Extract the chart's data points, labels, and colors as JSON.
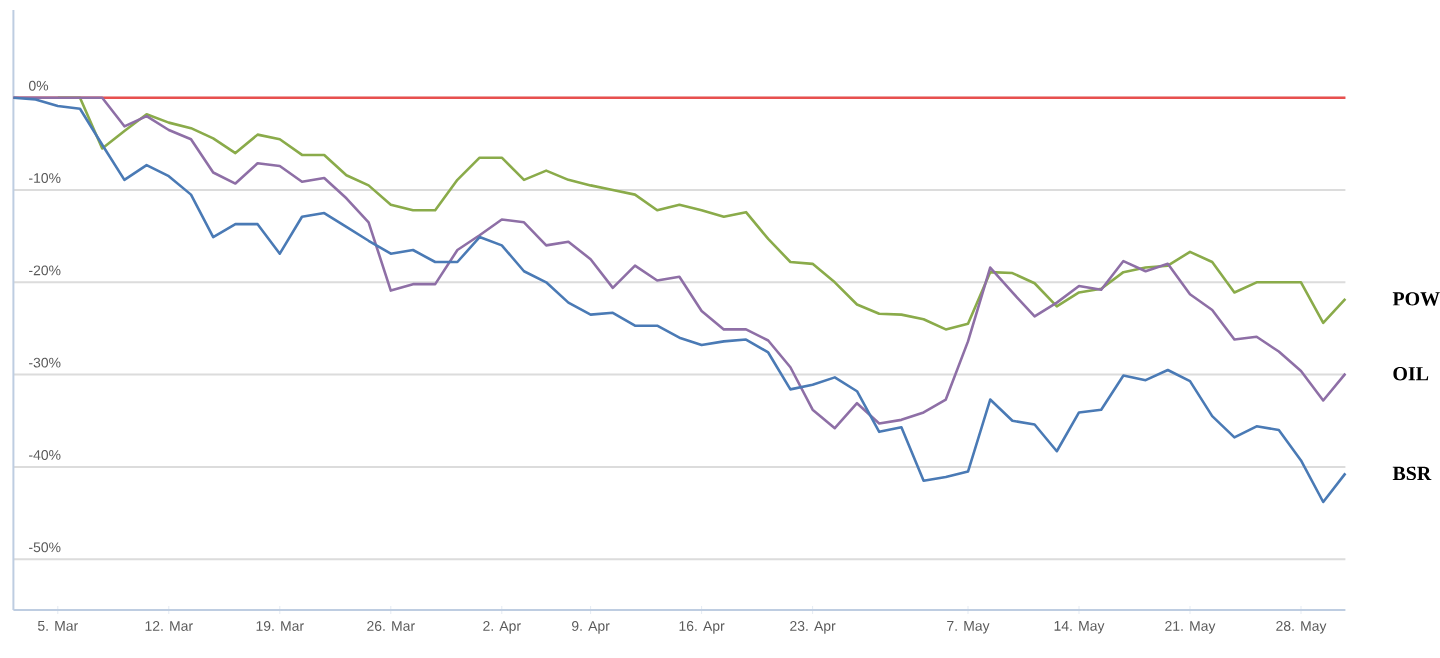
{
  "chart_data": {
    "type": "line",
    "categories": [
      null,
      null,
      "5. Mar",
      null,
      null,
      null,
      null,
      "12. Mar",
      null,
      null,
      null,
      null,
      "19. Mar",
      null,
      null,
      null,
      null,
      "26. Mar",
      null,
      null,
      null,
      null,
      "2. Apr",
      null,
      null,
      null,
      "9. Apr",
      null,
      null,
      null,
      null,
      "16. Apr",
      null,
      null,
      null,
      null,
      "23. Apr",
      null,
      null,
      null,
      null,
      null,
      null,
      "7. May",
      null,
      null,
      null,
      null,
      "14. May",
      null,
      null,
      null,
      null,
      "21. May",
      null,
      null,
      null,
      null,
      "28. May",
      null,
      null
    ],
    "ylim": [
      -55.5,
      9.5
    ],
    "yticks": [
      {
        "value": 0,
        "label": "0%"
      },
      {
        "value": -10,
        "label": "-10%"
      },
      {
        "value": -20,
        "label": "-20%"
      },
      {
        "value": -30,
        "label": "-30%"
      },
      {
        "value": -40,
        "label": "-40%"
      },
      {
        "value": -50,
        "label": "-50%"
      }
    ],
    "grid": "y",
    "legend": false,
    "marker": "none",
    "line_style": "solid",
    "ref_lines": [
      {
        "axis": "y",
        "value": 0,
        "color": "#e8504f"
      }
    ],
    "series": [
      {
        "name": "POW",
        "color": "#8aab4a",
        "values": [
          null,
          null,
          0,
          0,
          -5.5,
          -3.6,
          -1.8,
          -2.7,
          -3.3,
          -4.4,
          -6,
          -4,
          -4.5,
          -6.2,
          -6.2,
          -8.4,
          -9.5,
          -11.6,
          -12.2,
          -12.2,
          -8.9,
          -6.5,
          -6.5,
          -8.9,
          -7.9,
          -8.9,
          -9.5,
          -10,
          -10.5,
          -12.2,
          -11.6,
          -12.2,
          -12.9,
          -12.4,
          -15.3,
          -17.8,
          -18,
          -20,
          -22.4,
          -23.4,
          -23.5,
          -24,
          -25.1,
          -24.5,
          -18.9,
          -19,
          -20.1,
          -22.6,
          -21.1,
          -20.7,
          -18.9,
          -18.4,
          -18.2,
          -16.7,
          -17.8,
          -21.1,
          -20,
          -20,
          -20,
          -24.4,
          -21.8
        ]
      },
      {
        "name": "OIL",
        "color": "#8e6fa6",
        "values": [
          0,
          0,
          0,
          0,
          0,
          -3.1,
          -2,
          -3.5,
          -4.5,
          -8.1,
          -9.3,
          -7.1,
          -7.4,
          -9.1,
          -8.7,
          -10.9,
          -13.5,
          -20.9,
          -20.2,
          -20.2,
          -16.5,
          -14.9,
          -13.2,
          -13.5,
          -16,
          -15.6,
          -17.5,
          -20.6,
          -18.2,
          -19.8,
          -19.4,
          -23.1,
          -25.1,
          -25.1,
          -26.3,
          -29.2,
          -33.8,
          -35.8,
          -33.1,
          -35.3,
          -34.9,
          -34.1,
          -32.7,
          -26.4,
          -18.4,
          -21.1,
          -23.7,
          -22.2,
          -20.4,
          -20.8,
          -17.7,
          -18.8,
          -18,
          -21.3,
          -23,
          -26.2,
          -25.9,
          -27.5,
          -29.6,
          -32.8,
          -29.9
        ]
      },
      {
        "name": "BSR",
        "color": "#4a7ab5",
        "values": [
          0,
          -0.2,
          -0.9,
          -1.2,
          -5.1,
          -8.9,
          -7.3,
          -8.5,
          -10.5,
          -15.1,
          -13.7,
          -13.7,
          -16.9,
          -12.9,
          -12.5,
          -14,
          -15.5,
          -16.9,
          -16.5,
          -17.8,
          -17.8,
          -15.1,
          -16,
          -18.8,
          -20,
          -22.2,
          -23.5,
          -23.3,
          -24.7,
          -24.7,
          -26,
          -26.8,
          -26.4,
          -26.2,
          -27.6,
          -31.6,
          -31.1,
          -30.3,
          -31.8,
          -36.2,
          -35.7,
          -41.5,
          -41.1,
          -40.5,
          -32.7,
          -35,
          -35.4,
          -38.3,
          -34.1,
          -33.8,
          -30.1,
          -30.6,
          -29.5,
          -30.7,
          -34.5,
          -36.8,
          -35.6,
          -36,
          -39.3,
          -43.8,
          -40.7
        ]
      }
    ]
  }
}
